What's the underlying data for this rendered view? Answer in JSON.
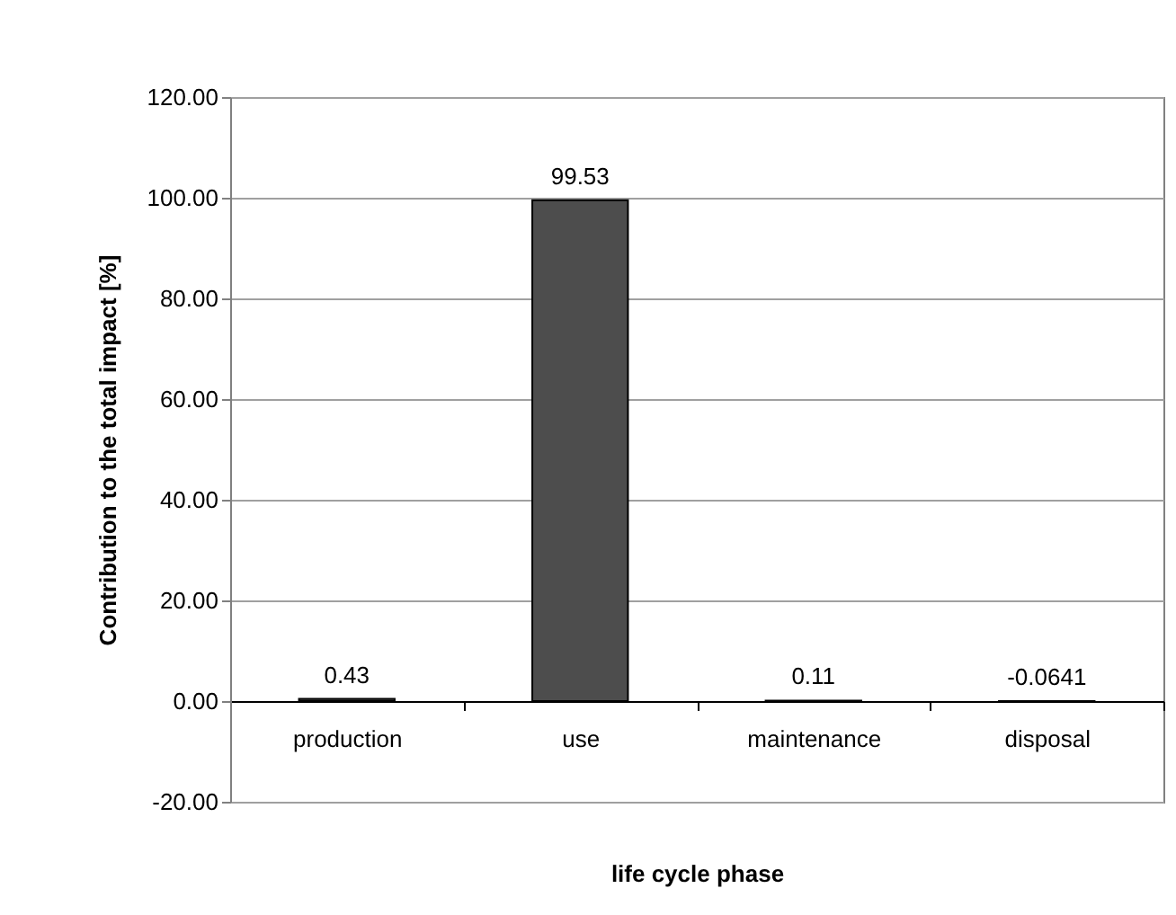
{
  "chart_data": {
    "type": "bar",
    "xlabel": "life cycle phase",
    "ylabel": "Contribution to the total impact [%]",
    "categories": [
      "production",
      "use",
      "maintenance",
      "disposal"
    ],
    "values": [
      0.43,
      99.53,
      0.11,
      -0.0641
    ],
    "color": "#4d4d4d",
    "data_labels": true,
    "ylim": [
      -20,
      120
    ],
    "yticks": [
      {
        "value": -20,
        "label": "-20.00"
      },
      {
        "value": 0,
        "label": "0.00"
      },
      {
        "value": 20,
        "label": "20.00"
      },
      {
        "value": 40,
        "label": "40.00"
      },
      {
        "value": 60,
        "label": "60.00"
      },
      {
        "value": 80,
        "label": "80.00"
      },
      {
        "value": 100,
        "label": "100.00"
      },
      {
        "value": 120,
        "label": "120.00"
      }
    ],
    "grid": "y"
  }
}
